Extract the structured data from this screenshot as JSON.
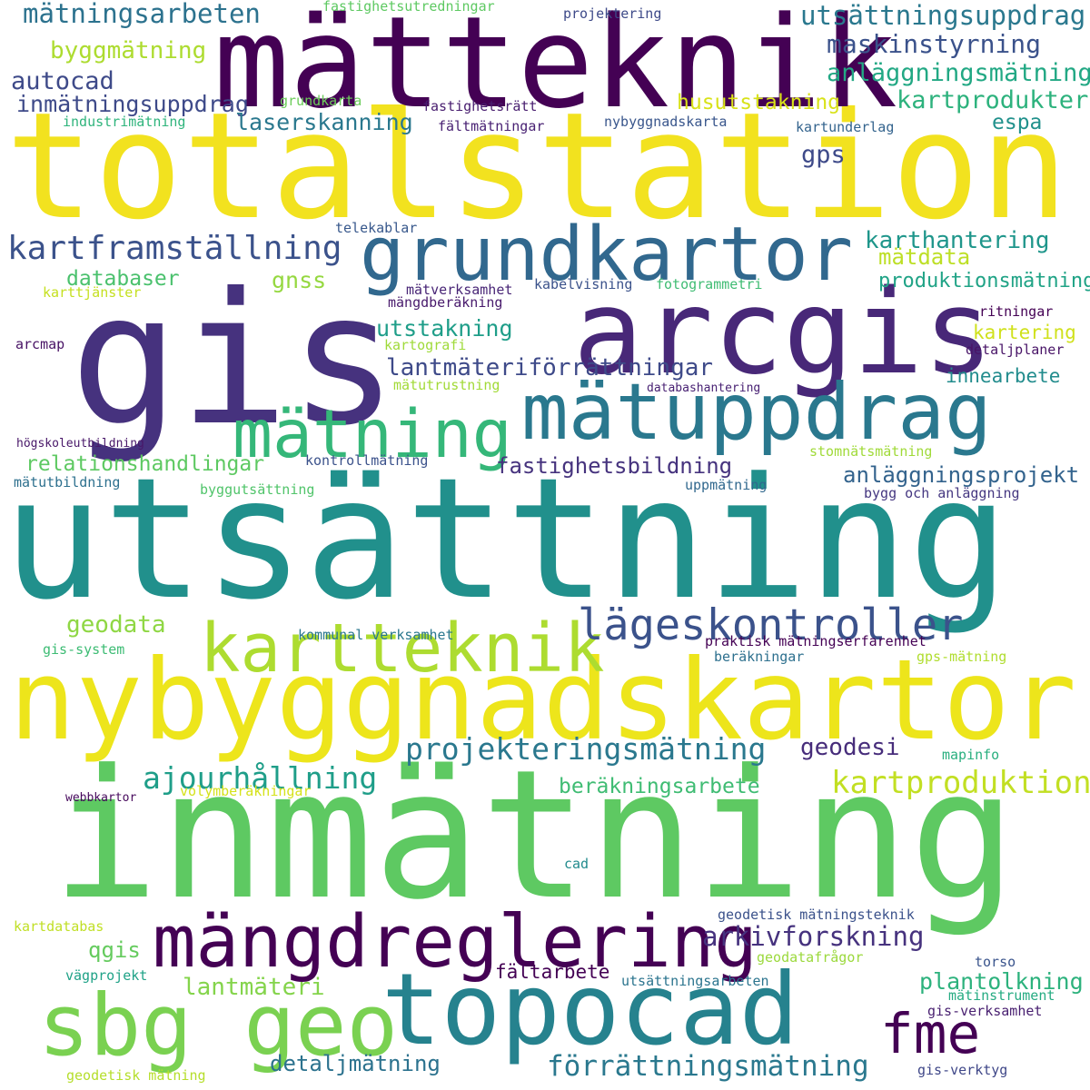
{
  "words": [
    {
      "text": "totalstation",
      "color": "#f2e21f"
    },
    {
      "text": "utsättning",
      "color": "#21908c"
    },
    {
      "text": "inmätning",
      "color": "#5ec962"
    },
    {
      "text": "mätteknik",
      "color": "#440154"
    },
    {
      "text": "gis",
      "color": "#46327e"
    },
    {
      "text": "nybyggnadskartor",
      "color": "#ede51b"
    },
    {
      "text": "arcgis",
      "color": "#482878"
    },
    {
      "text": "grundkartor",
      "color": "#31688e"
    },
    {
      "text": "mätuppdrag",
      "color": "#2a788e"
    },
    {
      "text": "mätning",
      "color": "#35b779"
    },
    {
      "text": "kartteknik",
      "color": "#addc30"
    },
    {
      "text": "mängdreglering",
      "color": "#440154"
    },
    {
      "text": "topocad",
      "color": "#26828e"
    },
    {
      "text": "sbg geo",
      "color": "#7ad151"
    },
    {
      "text": "fme",
      "color": "#440154"
    },
    {
      "text": "lägeskontroller",
      "color": "#3b528b"
    },
    {
      "text": "kartframställning",
      "color": "#3b528b"
    },
    {
      "text": "projekteringsmätning",
      "color": "#2a788e"
    },
    {
      "text": "kartproduktion",
      "color": "#c2df23"
    },
    {
      "text": "ajourhållning",
      "color": "#1f9e89"
    },
    {
      "text": "förrättningsmätning",
      "color": "#2a788e"
    },
    {
      "text": "arkivforskning",
      "color": "#46327e"
    },
    {
      "text": "mätningsarbeten",
      "color": "#2c728e"
    },
    {
      "text": "utsättningsuppdrag",
      "color": "#2a788e"
    },
    {
      "text": "maskinstyrning",
      "color": "#3b528b"
    },
    {
      "text": "anläggningsmätning",
      "color": "#22a884"
    },
    {
      "text": "kartprodukter",
      "color": "#2db27d"
    },
    {
      "text": "byggmätning",
      "color": "#addc30"
    },
    {
      "text": "autocad",
      "color": "#3e4a89"
    },
    {
      "text": "inmätningsuppdrag",
      "color": "#3e4a89"
    },
    {
      "text": "laserskanning",
      "color": "#2a788e"
    },
    {
      "text": "husutstakning",
      "color": "#d8e219"
    },
    {
      "text": "espa",
      "color": "#21918c"
    },
    {
      "text": "gps",
      "color": "#3e4a89"
    },
    {
      "text": "karthantering",
      "color": "#1f968b"
    },
    {
      "text": "mätdata",
      "color": "#bddf26"
    },
    {
      "text": "gnss",
      "color": "#95d840"
    },
    {
      "text": "produktionsmätning",
      "color": "#20a386"
    },
    {
      "text": "databaser",
      "color": "#4ac16d"
    },
    {
      "text": "utstakning",
      "color": "#1f9e89"
    },
    {
      "text": "kartering",
      "color": "#d0e11c"
    },
    {
      "text": "lantmäteriförrättningar",
      "color": "#3e4a89"
    },
    {
      "text": "innearbete",
      "color": "#228c8d"
    },
    {
      "text": "relationshandlingar",
      "color": "#5ec962"
    },
    {
      "text": "fastighetsbildning",
      "color": "#46337e"
    },
    {
      "text": "anläggningsprojekt",
      "color": "#33638d"
    },
    {
      "text": "geodata",
      "color": "#8fd744"
    },
    {
      "text": "geodesi",
      "color": "#472d7b"
    },
    {
      "text": "beräkningsarbete",
      "color": "#3fbc73"
    },
    {
      "text": "qgis",
      "color": "#65cb5e"
    },
    {
      "text": "lantmäteri",
      "color": "#84d44b"
    },
    {
      "text": "plantolkning",
      "color": "#2db27d"
    },
    {
      "text": "fältarbete",
      "color": "#440154"
    },
    {
      "text": "detaljmätning",
      "color": "#2c728e"
    },
    {
      "text": "fastighetsutredningar",
      "color": "#5ec962"
    },
    {
      "text": "projektering",
      "color": "#3e4a89"
    },
    {
      "text": "grundkarta",
      "color": "#6ccd5a"
    },
    {
      "text": "fastighetsrätt",
      "color": "#481d6f"
    },
    {
      "text": "industrimätning",
      "color": "#2fb47c"
    },
    {
      "text": "fältmätningar",
      "color": "#482173"
    },
    {
      "text": "nybyggnadskarta",
      "color": "#39568c"
    },
    {
      "text": "kartunderlag",
      "color": "#33638d"
    },
    {
      "text": "telekablar",
      "color": "#38588c"
    },
    {
      "text": "karttjänster",
      "color": "#c5e021"
    },
    {
      "text": "mätverksamhet",
      "color": "#482576"
    },
    {
      "text": "kabelvisning",
      "color": "#3b528b"
    },
    {
      "text": "fotogrammetri",
      "color": "#3fbc73"
    },
    {
      "text": "mängdberäkning",
      "color": "#481a6c"
    },
    {
      "text": "ritningar",
      "color": "#440154"
    },
    {
      "text": "arcmap",
      "color": "#471164"
    },
    {
      "text": "kartografi",
      "color": "#9fda3a"
    },
    {
      "text": "detaljplaner",
      "color": "#481467"
    },
    {
      "text": "mätutrustning",
      "color": "#a2da37"
    },
    {
      "text": "databashantering",
      "color": "#482173"
    },
    {
      "text": "högskoleutbildning",
      "color": "#481769"
    },
    {
      "text": "kontrollmätning",
      "color": "#3b528b"
    },
    {
      "text": "stomnätsmätning",
      "color": "#a0da39"
    },
    {
      "text": "mätutbildning",
      "color": "#2d708e"
    },
    {
      "text": "byggutsättning",
      "color": "#50c46a"
    },
    {
      "text": "uppmätning",
      "color": "#31688e"
    },
    {
      "text": "bygg och anläggning",
      "color": "#453781"
    },
    {
      "text": "kommunal verksamhet",
      "color": "#2a778e"
    },
    {
      "text": "praktisk mätningserfarenhet",
      "color": "#440154"
    },
    {
      "text": "gis-system",
      "color": "#3dbc74"
    },
    {
      "text": "beräkningar",
      "color": "#2d708e"
    },
    {
      "text": "gps-mätning",
      "color": "#b0dd2f"
    },
    {
      "text": "mapinfo",
      "color": "#29af7f"
    },
    {
      "text": "webbkartor",
      "color": "#46085c"
    },
    {
      "text": "volymberäkningar",
      "color": "#d5e21a"
    },
    {
      "text": "cad",
      "color": "#228b8d"
    },
    {
      "text": "geodetisk mätningsteknik",
      "color": "#3b528b"
    },
    {
      "text": "kartdatabas",
      "color": "#c0df25"
    },
    {
      "text": "geodatafrågor",
      "color": "#9bd93c"
    },
    {
      "text": "torso",
      "color": "#3a548c"
    },
    {
      "text": "vägprojekt",
      "color": "#1fa287"
    },
    {
      "text": "utsättningsarbeten",
      "color": "#2b748e"
    },
    {
      "text": "mätinstrument",
      "color": "#25ab82"
    },
    {
      "text": "gis-verksamhet",
      "color": "#481f70"
    },
    {
      "text": "geodetisk mätning",
      "color": "#b5de2b"
    },
    {
      "text": "gis-verktyg",
      "color": "#3f4788"
    }
  ]
}
